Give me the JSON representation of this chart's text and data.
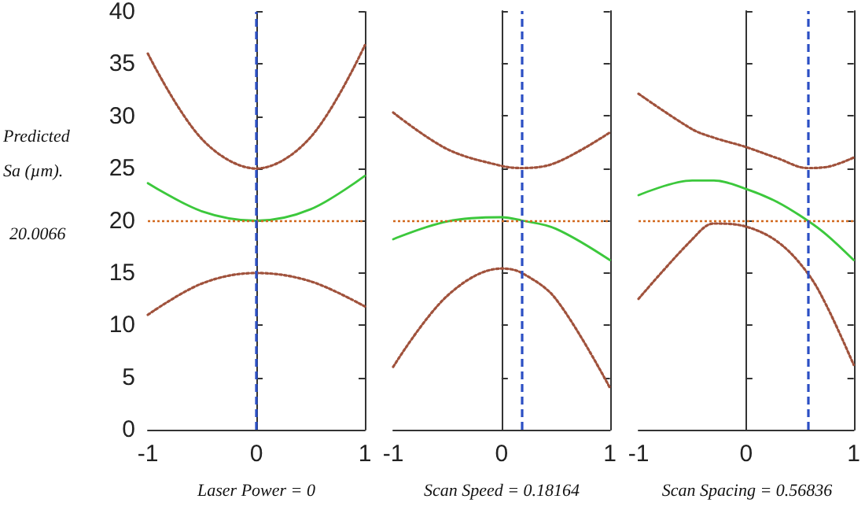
{
  "chart_data": [
    {
      "type": "line",
      "ylabel": "Predicted Sa (µm).",
      "xlabel": "Laser Power = 0",
      "annotations": [
        "20.0066"
      ],
      "x": [
        -1,
        -0.5,
        0,
        0.5,
        1
      ],
      "xlim": [
        -1,
        1
      ],
      "xticks": [
        -1,
        0,
        1
      ],
      "ylim": [
        0,
        40
      ],
      "yticks": [
        0,
        5,
        10,
        15,
        20,
        25,
        30,
        35,
        40
      ],
      "grid": false,
      "marker": "none",
      "series": [
        {
          "color": "#a0523c",
          "line_style": "dotted",
          "values": [
            36,
            27.8,
            25,
            28,
            36.8
          ]
        },
        {
          "color": "#3cc83c",
          "line_style": "solid",
          "values": [
            23.6,
            20.9,
            20.0,
            21.1,
            24.3
          ]
        },
        {
          "color": "#a0523c",
          "line_style": "dotted",
          "values": [
            11,
            14,
            15,
            14.2,
            11.8
          ]
        }
      ],
      "ref_lines": [
        {
          "axis": "y",
          "value": 20.0066,
          "color": "#d2691e",
          "line_style": "dotted"
        },
        {
          "axis": "x",
          "value": 0,
          "color": "#2b4fc4",
          "line_style": "dashed"
        }
      ]
    },
    {
      "type": "line",
      "xlabel": "Scan Speed = 0.18164",
      "x": [
        -1,
        -0.5,
        0,
        0.18164,
        0.5,
        1
      ],
      "xlim": [
        -1,
        1
      ],
      "xticks": [
        -1,
        0,
        1
      ],
      "ylim": [
        0,
        40
      ],
      "yticks": [
        0,
        5,
        10,
        15,
        20,
        25,
        30,
        35,
        40
      ],
      "tick_labels": "x",
      "grid": false,
      "marker": "none",
      "series": [
        {
          "color": "#a0523c",
          "line_style": "dotted",
          "values": [
            30.3,
            26.8,
            25.2,
            25,
            25.5,
            28.4
          ]
        },
        {
          "color": "#3cc83c",
          "line_style": "solid",
          "values": [
            18.2,
            19.9,
            20.3,
            20.0,
            19.2,
            16.2
          ]
        },
        {
          "color": "#a0523c",
          "line_style": "dotted",
          "values": [
            6,
            12.8,
            15.4,
            15,
            12.5,
            4
          ]
        }
      ],
      "ref_lines": [
        {
          "axis": "y",
          "value": 20.0066,
          "color": "#d2691e",
          "line_style": "dotted"
        },
        {
          "axis": "x",
          "value": 0.18164,
          "color": "#2b4fc4",
          "line_style": "dashed"
        }
      ]
    },
    {
      "type": "line",
      "xlabel": "Scan Spacing = 0.56836",
      "x": [
        -1,
        -0.5,
        -0.3,
        0,
        0.3,
        0.56836,
        0.75,
        1
      ],
      "xlim": [
        -1,
        1
      ],
      "xticks": [
        -1,
        0,
        1
      ],
      "ylim": [
        0,
        40
      ],
      "yticks": [
        0,
        5,
        10,
        15,
        20,
        25,
        30,
        35,
        40
      ],
      "tick_labels": "x",
      "grid": false,
      "marker": "none",
      "series": [
        {
          "color": "#a0523c",
          "line_style": "dotted",
          "values": [
            32.1,
            28.7,
            27.9,
            27,
            25.9,
            25,
            25.1,
            26
          ]
        },
        {
          "color": "#3cc83c",
          "line_style": "solid",
          "values": [
            22.4,
            23.8,
            23.8,
            23,
            21.7,
            20,
            18.6,
            16.2
          ]
        },
        {
          "color": "#a0523c",
          "line_style": "dotted",
          "values": [
            12.5,
            18.2,
            19.7,
            19.4,
            17.9,
            15,
            11.8,
            6.2
          ]
        }
      ],
      "ref_lines": [
        {
          "axis": "y",
          "value": 20.0066,
          "color": "#d2691e",
          "line_style": "dotted"
        },
        {
          "axis": "x",
          "value": 0.56836,
          "color": "#2b4fc4",
          "line_style": "dashed"
        }
      ]
    }
  ]
}
